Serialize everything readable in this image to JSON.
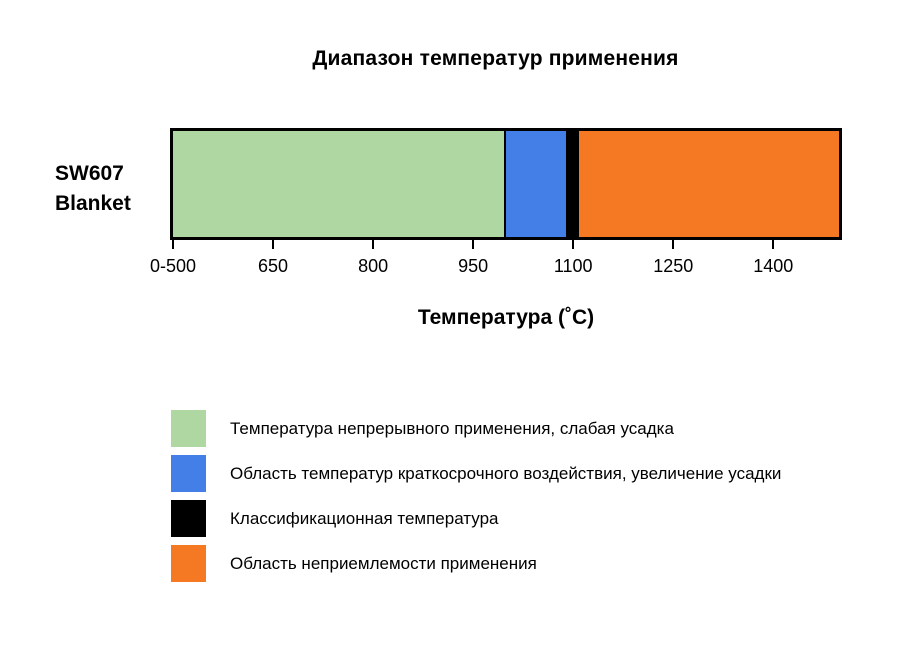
{
  "chart": {
    "title": "Диапазон температур применения",
    "row_label_line1": "SW607",
    "row_label_line2": "Blanket",
    "x_axis_title": "Температура (˚C)"
  },
  "legend": {
    "items": [
      {
        "label": "Температура непрерывного применения, слабая усадка",
        "color": "#aed7a2"
      },
      {
        "label": "Область температур краткосрочного воздействия, увеличение усадки",
        "color": "#447fe8"
      },
      {
        "label": "Классификационная температура",
        "color": "#000000"
      },
      {
        "label": "Область неприемлемости применения",
        "color": "#f57822"
      }
    ]
  },
  "chart_data": {
    "type": "bar",
    "orientation": "horizontal",
    "title": "Диапазон температур применения",
    "category": "SW607 Blanket",
    "xlabel": "Температура (˚C)",
    "x_ticks": [
      "0-500",
      "650",
      "800",
      "950",
      "1100",
      "1250",
      "1400"
    ],
    "xlim": [
      0,
      1500
    ],
    "axis_note": "first tick 0-500 is compressed to origin; 150 °C per tick thereafter",
    "classification_temperature_c": 1100,
    "segments": [
      {
        "name": "Температура непрерывного применения, слабая усадка",
        "from": 0,
        "to": 1000,
        "color": "#aed7a2"
      },
      {
        "name": "Область температур краткосрочного воздействия, увеличение усадки",
        "from": 1000,
        "to": 1090,
        "color": "#447fe8"
      },
      {
        "name": "Классификационная температура",
        "from": 1090,
        "to": 1110,
        "color": "#000000"
      },
      {
        "name": "Область неприемлемости применения",
        "from": 1110,
        "to": 1500,
        "color": "#f57822"
      }
    ]
  }
}
